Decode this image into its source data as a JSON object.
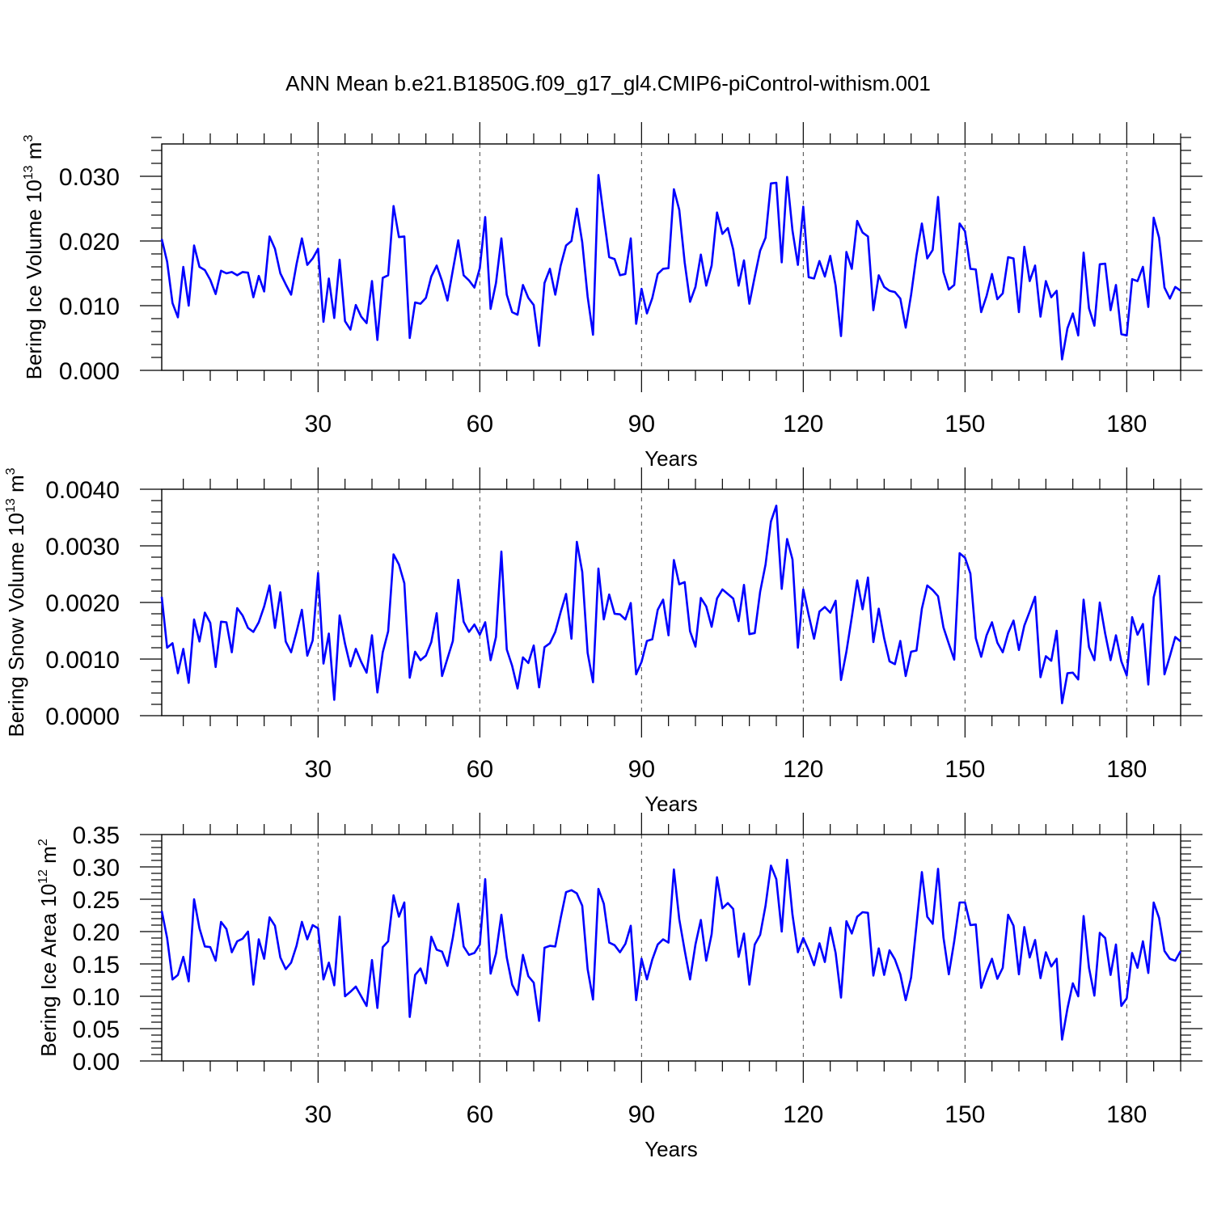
{
  "title": "ANN Mean b.e21.B1850G.f09_g17_gl4.CMIP6-piControl-withism.001",
  "line_color": "#0000ff",
  "chart_data": [
    {
      "type": "line",
      "ylabel": "Bering Ice Volume",
      "yunit_base": "10",
      "yunit_exp": "13",
      "yunit_dim": "m",
      "yunit_pow": "3",
      "xlabel": "Years",
      "xlim": [
        1,
        190
      ],
      "ylim": [
        0,
        0.035
      ],
      "xticks": [
        30,
        60,
        90,
        120,
        150,
        180
      ],
      "xtick_labels": [
        "30",
        "60",
        "90",
        "120",
        "150",
        "180"
      ],
      "yticks": [
        0,
        0.01,
        0.02,
        0.03
      ],
      "ytick_labels": [
        "0.000",
        "0.010",
        "0.020",
        "0.030"
      ],
      "yminor_step": 0.002,
      "values": [
        0.0203,
        0.0168,
        0.0104,
        0.0082,
        0.016,
        0.01,
        0.0193,
        0.016,
        0.0155,
        0.014,
        0.0118,
        0.0154,
        0.015,
        0.0152,
        0.0147,
        0.0152,
        0.0151,
        0.0113,
        0.0146,
        0.0122,
        0.0207,
        0.0188,
        0.015,
        0.0133,
        0.0117,
        0.0164,
        0.0204,
        0.0163,
        0.0173,
        0.0188,
        0.0075,
        0.0142,
        0.0081,
        0.0171,
        0.0076,
        0.0063,
        0.0101,
        0.0083,
        0.0073,
        0.0138,
        0.0047,
        0.0143,
        0.0147,
        0.0254,
        0.0206,
        0.0207,
        0.005,
        0.0105,
        0.0103,
        0.0112,
        0.0145,
        0.0162,
        0.0138,
        0.0108,
        0.0155,
        0.0201,
        0.0147,
        0.0139,
        0.0128,
        0.0158,
        0.0237,
        0.0095,
        0.0135,
        0.0204,
        0.0117,
        0.009,
        0.0086,
        0.0132,
        0.0112,
        0.0101,
        0.0038,
        0.0135,
        0.0157,
        0.0117,
        0.0162,
        0.0193,
        0.02,
        0.025,
        0.0198,
        0.0114,
        0.0055,
        0.0302,
        0.0237,
        0.0175,
        0.0172,
        0.0147,
        0.0149,
        0.0204,
        0.0072,
        0.0126,
        0.0088,
        0.0112,
        0.0149,
        0.0157,
        0.0158,
        0.028,
        0.0248,
        0.0167,
        0.0106,
        0.0129,
        0.0179,
        0.0131,
        0.0162,
        0.0244,
        0.0211,
        0.022,
        0.0187,
        0.0131,
        0.017,
        0.0103,
        0.0145,
        0.0185,
        0.0205,
        0.0289,
        0.029,
        0.0167,
        0.0299,
        0.0216,
        0.0163,
        0.0253,
        0.0144,
        0.0142,
        0.0169,
        0.0145,
        0.0177,
        0.0131,
        0.0053,
        0.0183,
        0.0157,
        0.0231,
        0.0213,
        0.0207,
        0.0093,
        0.0147,
        0.0129,
        0.0123,
        0.0121,
        0.0111,
        0.0066,
        0.0117,
        0.0178,
        0.0227,
        0.0173,
        0.0186,
        0.0268,
        0.0152,
        0.0125,
        0.0132,
        0.0227,
        0.0215,
        0.0157,
        0.0156,
        0.009,
        0.0115,
        0.0149,
        0.011,
        0.0119,
        0.0175,
        0.0173,
        0.009,
        0.0191,
        0.0138,
        0.0162,
        0.0083,
        0.0138,
        0.0113,
        0.0123,
        0.0017,
        0.0065,
        0.0088,
        0.0054,
        0.0182,
        0.0096,
        0.0069,
        0.0164,
        0.0165,
        0.0093,
        0.0132,
        0.0056,
        0.0054,
        0.0141,
        0.0138,
        0.016,
        0.0098,
        0.0236,
        0.0205,
        0.0128,
        0.0111,
        0.0129,
        0.0123
      ]
    },
    {
      "type": "line",
      "ylabel": "Bering Snow Volume",
      "yunit_base": "10",
      "yunit_exp": "13",
      "yunit_dim": "m",
      "yunit_pow": "3",
      "xlabel": "Years",
      "xlim": [
        1,
        190
      ],
      "ylim": [
        0,
        0.004
      ],
      "xticks": [
        30,
        60,
        90,
        120,
        150,
        180
      ],
      "xtick_labels": [
        "30",
        "60",
        "90",
        "120",
        "150",
        "180"
      ],
      "yticks": [
        0,
        0.001,
        0.002,
        0.003,
        0.004
      ],
      "ytick_labels": [
        "0.0000",
        "0.0010",
        "0.0020",
        "0.0030",
        "0.0040"
      ],
      "yminor_step": 0.0002,
      "values": [
        0.0021,
        0.0012,
        0.00128,
        0.00075,
        0.00118,
        0.00058,
        0.0017,
        0.00131,
        0.00182,
        0.00164,
        0.00086,
        0.00166,
        0.00165,
        0.00112,
        0.0019,
        0.00177,
        0.00155,
        0.00148,
        0.00165,
        0.00193,
        0.0023,
        0.00155,
        0.00218,
        0.00131,
        0.00112,
        0.00148,
        0.00187,
        0.00106,
        0.00133,
        0.00252,
        0.00092,
        0.00145,
        0.00028,
        0.00177,
        0.00127,
        0.00087,
        0.00118,
        0.00095,
        0.00076,
        0.00142,
        0.00041,
        0.00112,
        0.00149,
        0.00285,
        0.00267,
        0.00234,
        0.00067,
        0.00113,
        0.00098,
        0.00106,
        0.0013,
        0.00181,
        0.0007,
        0.00101,
        0.00132,
        0.0024,
        0.00166,
        0.00148,
        0.00161,
        0.00143,
        0.00165,
        0.00098,
        0.00139,
        0.0029,
        0.00117,
        0.00088,
        0.00048,
        0.00103,
        0.00093,
        0.00124,
        0.0005,
        0.00121,
        0.00128,
        0.00148,
        0.00183,
        0.00215,
        0.00136,
        0.00307,
        0.00254,
        0.00111,
        0.00059,
        0.0026,
        0.0017,
        0.00214,
        0.0018,
        0.00179,
        0.0017,
        0.00199,
        0.00073,
        0.00095,
        0.00132,
        0.00135,
        0.00187,
        0.00205,
        0.00142,
        0.00275,
        0.00232,
        0.00236,
        0.00149,
        0.00122,
        0.00208,
        0.00193,
        0.00157,
        0.00207,
        0.00223,
        0.00215,
        0.00207,
        0.00167,
        0.00231,
        0.00144,
        0.00146,
        0.00219,
        0.00267,
        0.00343,
        0.00371,
        0.00224,
        0.00312,
        0.00276,
        0.0012,
        0.00223,
        0.00178,
        0.00136,
        0.00184,
        0.00192,
        0.00182,
        0.00203,
        0.00063,
        0.00113,
        0.00174,
        0.00239,
        0.00188,
        0.00244,
        0.0013,
        0.00189,
        0.00137,
        0.00096,
        0.00091,
        0.00132,
        0.0007,
        0.00113,
        0.00115,
        0.00189,
        0.0023,
        0.00222,
        0.00211,
        0.00156,
        0.00127,
        0.00099,
        0.00287,
        0.00279,
        0.00251,
        0.00137,
        0.00104,
        0.00142,
        0.00165,
        0.00129,
        0.00112,
        0.00146,
        0.00168,
        0.00116,
        0.00159,
        0.00184,
        0.0021,
        0.00068,
        0.00105,
        0.00097,
        0.0015,
        0.00022,
        0.00075,
        0.00076,
        0.00064,
        0.00205,
        0.00121,
        0.00098,
        0.002,
        0.00145,
        0.00098,
        0.00142,
        0.00096,
        0.00071,
        0.00174,
        0.00143,
        0.00162,
        0.00055,
        0.00209,
        0.00247,
        0.00073,
        0.00105,
        0.00139,
        0.00131
      ]
    },
    {
      "type": "line",
      "ylabel": "Bering Ice Area",
      "yunit_base": "10",
      "yunit_exp": "12",
      "yunit_dim": "m",
      "yunit_pow": "2",
      "xlabel": "Years",
      "xlim": [
        1,
        190
      ],
      "ylim": [
        0,
        0.35
      ],
      "xticks": [
        30,
        60,
        90,
        120,
        150,
        180
      ],
      "xtick_labels": [
        "30",
        "60",
        "90",
        "120",
        "150",
        "180"
      ],
      "yticks": [
        0,
        0.05,
        0.1,
        0.15,
        0.2,
        0.25,
        0.3,
        0.35
      ],
      "ytick_labels": [
        "0.00",
        "0.05",
        "0.10",
        "0.15",
        "0.20",
        "0.25",
        "0.30",
        "0.35"
      ],
      "yminor_step": 0.01,
      "values": [
        0.232,
        0.19,
        0.126,
        0.133,
        0.161,
        0.123,
        0.25,
        0.205,
        0.177,
        0.176,
        0.155,
        0.215,
        0.204,
        0.168,
        0.185,
        0.189,
        0.2,
        0.118,
        0.188,
        0.158,
        0.222,
        0.209,
        0.16,
        0.142,
        0.152,
        0.178,
        0.215,
        0.188,
        0.21,
        0.205,
        0.126,
        0.152,
        0.117,
        0.223,
        0.1,
        0.107,
        0.115,
        0.1,
        0.085,
        0.156,
        0.082,
        0.176,
        0.185,
        0.256,
        0.223,
        0.245,
        0.068,
        0.133,
        0.143,
        0.12,
        0.192,
        0.172,
        0.169,
        0.147,
        0.191,
        0.243,
        0.177,
        0.164,
        0.167,
        0.18,
        0.281,
        0.135,
        0.166,
        0.226,
        0.16,
        0.118,
        0.102,
        0.164,
        0.131,
        0.121,
        0.062,
        0.175,
        0.178,
        0.177,
        0.221,
        0.261,
        0.264,
        0.259,
        0.24,
        0.142,
        0.095,
        0.266,
        0.243,
        0.183,
        0.179,
        0.168,
        0.181,
        0.209,
        0.094,
        0.158,
        0.126,
        0.157,
        0.18,
        0.188,
        0.183,
        0.296,
        0.219,
        0.171,
        0.126,
        0.18,
        0.218,
        0.155,
        0.196,
        0.284,
        0.236,
        0.244,
        0.235,
        0.161,
        0.197,
        0.118,
        0.18,
        0.195,
        0.24,
        0.302,
        0.281,
        0.2,
        0.311,
        0.226,
        0.168,
        0.19,
        0.171,
        0.148,
        0.182,
        0.153,
        0.206,
        0.167,
        0.098,
        0.216,
        0.197,
        0.223,
        0.23,
        0.229,
        0.132,
        0.174,
        0.133,
        0.171,
        0.157,
        0.134,
        0.094,
        0.129,
        0.21,
        0.292,
        0.223,
        0.212,
        0.297,
        0.191,
        0.134,
        0.185,
        0.245,
        0.245,
        0.21,
        0.211,
        0.113,
        0.137,
        0.158,
        0.127,
        0.144,
        0.226,
        0.209,
        0.134,
        0.207,
        0.16,
        0.187,
        0.128,
        0.168,
        0.146,
        0.158,
        0.033,
        0.081,
        0.12,
        0.1,
        0.224,
        0.144,
        0.101,
        0.198,
        0.19,
        0.133,
        0.18,
        0.085,
        0.097,
        0.167,
        0.144,
        0.185,
        0.136,
        0.245,
        0.221,
        0.17,
        0.158,
        0.155,
        0.17
      ]
    }
  ]
}
